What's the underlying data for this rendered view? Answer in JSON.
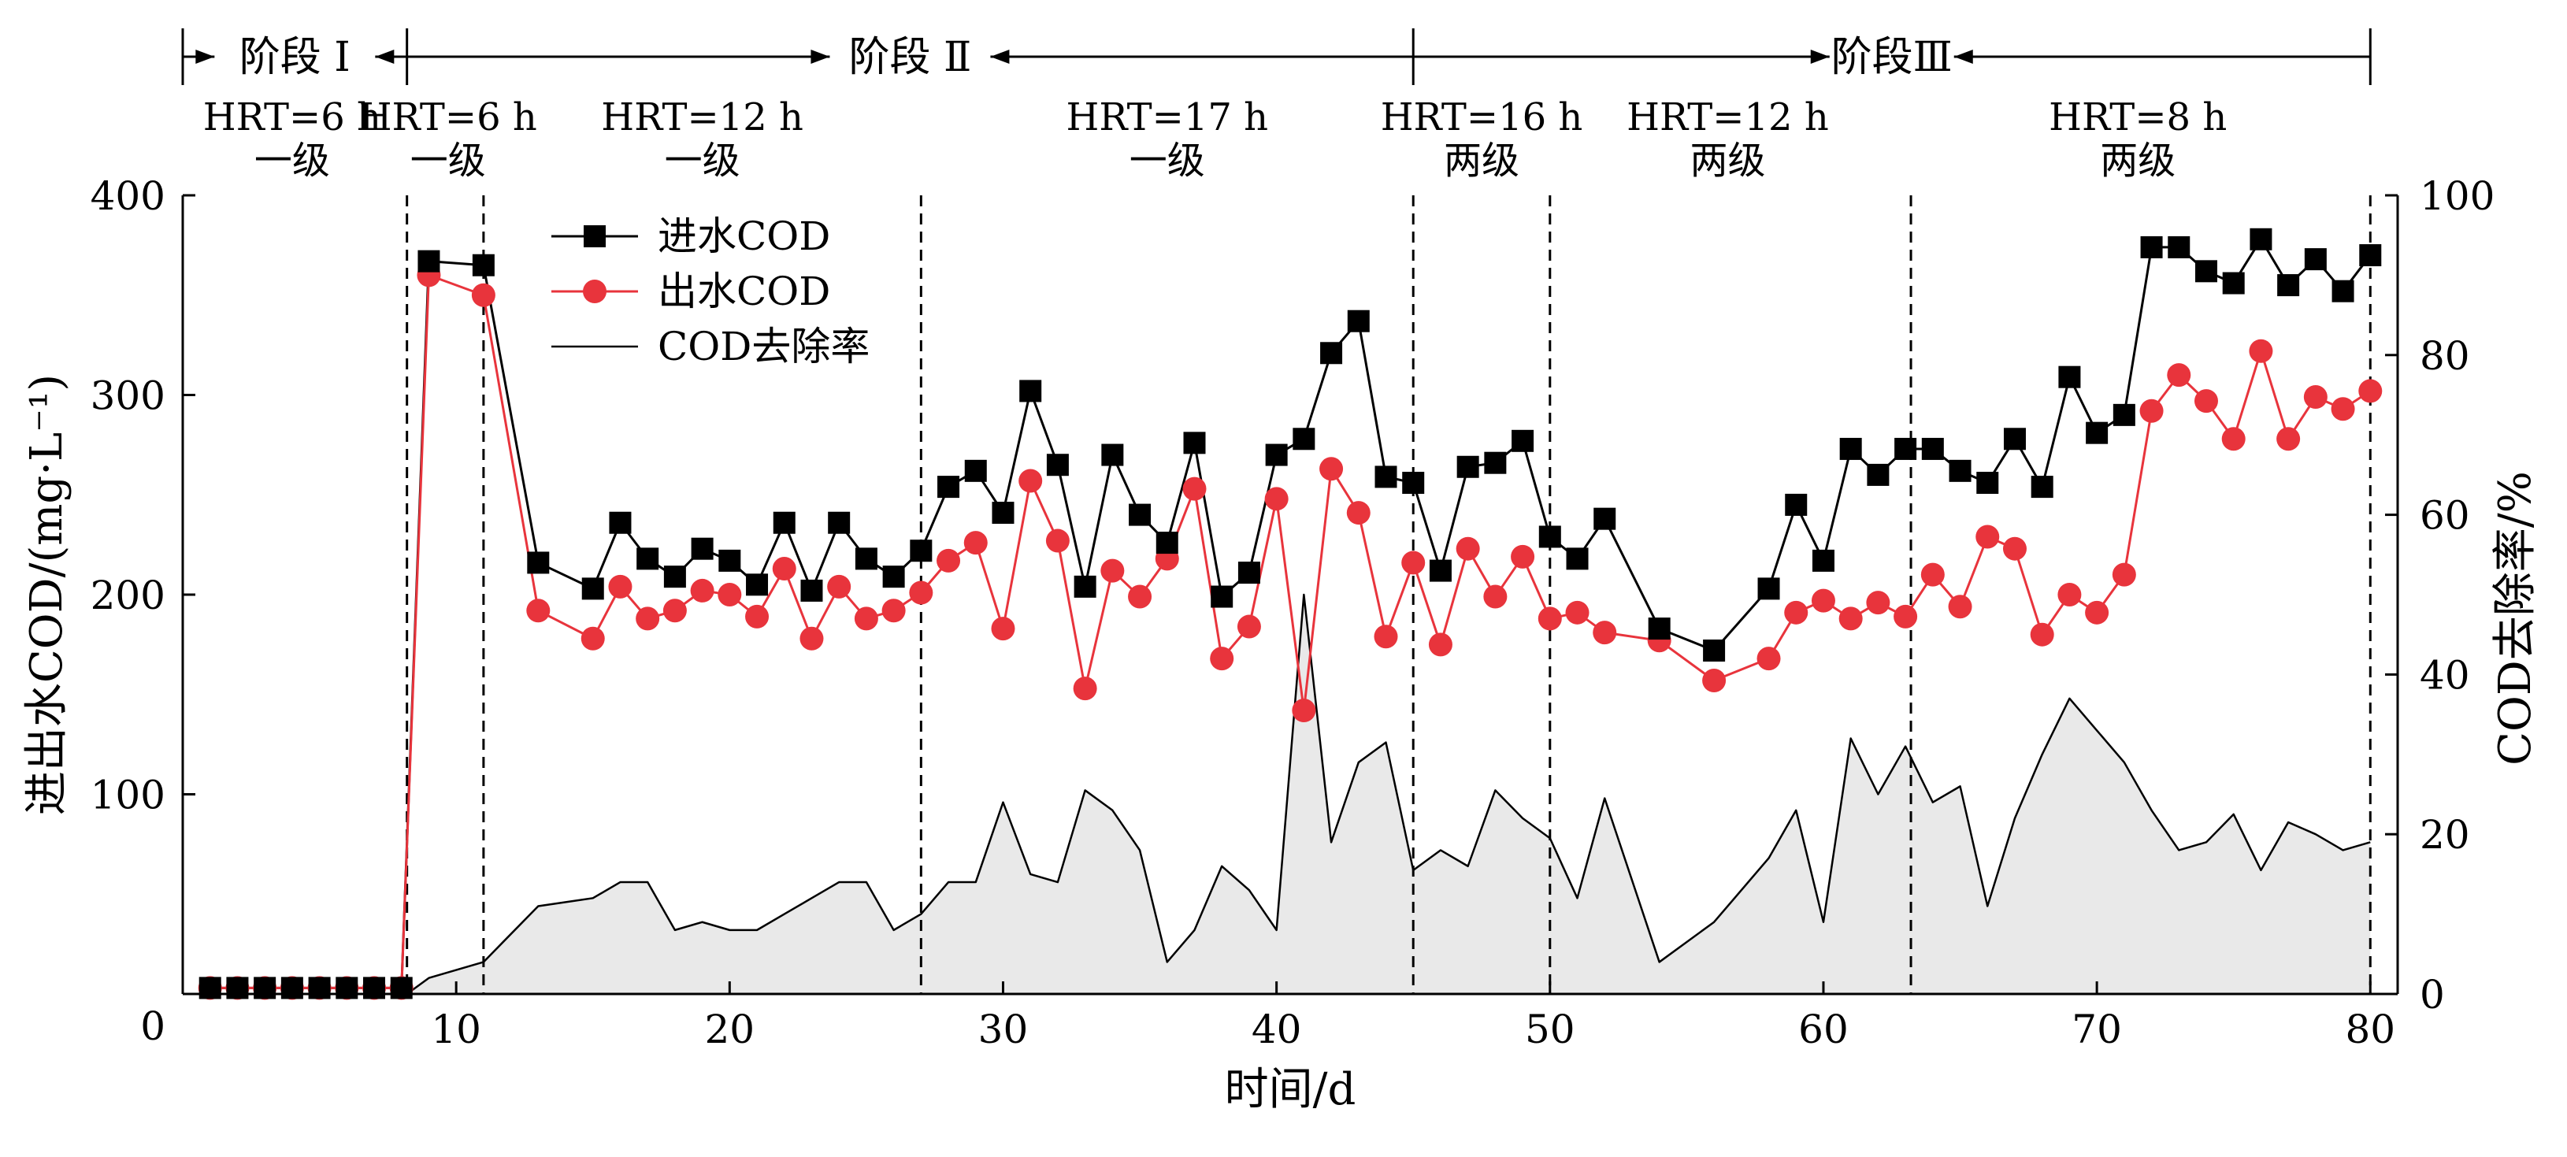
{
  "chart_data": {
    "type": "line",
    "xlabel": "时间/d",
    "ylabel_left": "进出水COD/(mg·L⁻¹)",
    "ylabel_right": "COD去除率/%",
    "xlim": [
      0,
      81
    ],
    "ylim_left": [
      0,
      400
    ],
    "ylim_right": [
      0,
      100
    ],
    "x_ticks": [
      10,
      20,
      30,
      40,
      50,
      60,
      70,
      80
    ],
    "y_left_ticks": [
      100,
      200,
      300,
      400
    ],
    "y_left_origin_label": "0",
    "y_right_ticks": [
      0,
      20,
      40,
      60,
      80,
      100
    ],
    "legend_position": "top-left",
    "legend": [
      "进水COD",
      "出水COD",
      "COD去除率"
    ],
    "colors": {
      "influent": "#000000",
      "effluent": "#e8343c",
      "removal_line": "#000000",
      "removal_fill": "#e9e9e9"
    },
    "phase_separators": [
      8.2,
      11,
      27,
      45,
      50,
      63.2,
      80
    ],
    "stage_markers": [
      {
        "label": "阶段 Ⅰ",
        "x_start": 0,
        "x_end": 8.2
      },
      {
        "label": "阶段 Ⅱ",
        "x_start": 8.2,
        "x_end": 45
      },
      {
        "label": "阶段Ⅲ",
        "x_start": 45,
        "x_end": 80
      }
    ],
    "stage_boundaries": [
      0,
      8.2,
      45,
      80
    ],
    "conditions": [
      {
        "hrt": "HRT=6 h",
        "level": "一级",
        "x": 4
      },
      {
        "hrt": "HRT=6 h",
        "level": "一级",
        "x": 9.7
      },
      {
        "hrt": "HRT=12 h",
        "level": "一级",
        "x": 19
      },
      {
        "hrt": "HRT=17 h",
        "level": "一级",
        "x": 36
      },
      {
        "hrt": "HRT=16 h",
        "level": "两级",
        "x": 47.5
      },
      {
        "hrt": "HRT=12 h",
        "level": "两级",
        "x": 56.5
      },
      {
        "hrt": "HRT=8 h",
        "level": "两级",
        "x": 71.5
      }
    ],
    "series": [
      {
        "name": "进水COD",
        "axis": "left",
        "marker": "square",
        "x": [
          1,
          2,
          3,
          4,
          5,
          6,
          7,
          8,
          9,
          11,
          13,
          15,
          16,
          17,
          18,
          19,
          20,
          21,
          22,
          23,
          24,
          25,
          26,
          27,
          28,
          29,
          30,
          31,
          32,
          33,
          34,
          35,
          36,
          37,
          38,
          39,
          40,
          41,
          42,
          43,
          44,
          45,
          46,
          47,
          48,
          49,
          50,
          51,
          52,
          54,
          56,
          58,
          59,
          60,
          61,
          62,
          63,
          64,
          65,
          66,
          67,
          68,
          69,
          70,
          71,
          72,
          73,
          74,
          75,
          76,
          77,
          78,
          79,
          80
        ],
        "y": [
          3,
          3,
          3,
          3,
          3,
          3,
          3,
          3,
          367,
          365,
          216,
          203,
          236,
          218,
          209,
          223,
          217,
          205,
          236,
          202,
          236,
          218,
          209,
          222,
          254,
          262,
          241,
          302,
          265,
          204,
          270,
          240,
          226,
          276,
          199,
          211,
          270,
          278,
          321,
          337,
          259,
          256,
          212,
          264,
          266,
          277,
          229,
          218,
          238,
          183,
          172,
          203,
          245,
          217,
          273,
          260,
          273,
          273,
          262,
          256,
          278,
          254,
          309,
          281,
          290,
          374,
          374,
          362,
          356,
          378,
          355,
          368,
          352,
          370
        ]
      },
      {
        "name": "出水COD",
        "axis": "left",
        "marker": "circle",
        "x": [
          1,
          2,
          3,
          4,
          5,
          6,
          7,
          8,
          9,
          11,
          13,
          15,
          16,
          17,
          18,
          19,
          20,
          21,
          22,
          23,
          24,
          25,
          26,
          27,
          28,
          29,
          30,
          31,
          32,
          33,
          34,
          35,
          36,
          37,
          38,
          39,
          40,
          41,
          42,
          43,
          44,
          45,
          46,
          47,
          48,
          49,
          50,
          51,
          52,
          54,
          56,
          58,
          59,
          60,
          61,
          62,
          63,
          64,
          65,
          66,
          67,
          68,
          69,
          70,
          71,
          72,
          73,
          74,
          75,
          76,
          77,
          78,
          79,
          80
        ],
        "y": [
          3,
          3,
          3,
          3,
          3,
          3,
          3,
          3,
          360,
          350,
          192,
          178,
          204,
          188,
          192,
          202,
          200,
          189,
          213,
          178,
          204,
          188,
          192,
          201,
          217,
          226,
          183,
          257,
          227,
          153,
          212,
          199,
          218,
          253,
          168,
          184,
          248,
          142,
          263,
          241,
          179,
          216,
          175,
          223,
          199,
          219,
          188,
          191,
          181,
          177,
          157,
          168,
          191,
          197,
          188,
          196,
          189,
          210,
          194,
          229,
          223,
          180,
          200,
          191,
          210,
          292,
          310,
          297,
          278,
          322,
          278,
          299,
          293,
          302
        ]
      },
      {
        "name": "COD去除率",
        "axis": "right",
        "fill": true,
        "x": [
          1,
          2,
          3,
          4,
          5,
          6,
          7,
          8,
          8.2,
          9,
          11,
          13,
          15,
          16,
          17,
          18,
          19,
          20,
          21,
          22,
          23,
          24,
          25,
          26,
          27,
          28,
          29,
          30,
          31,
          32,
          33,
          34,
          35,
          36,
          37,
          38,
          39,
          40,
          41,
          42,
          43,
          44,
          45,
          46,
          47,
          48,
          49,
          50,
          51,
          52,
          54,
          56,
          58,
          59,
          60,
          61,
          62,
          63,
          64,
          65,
          66,
          67,
          68,
          69,
          70,
          71,
          72,
          73,
          74,
          75,
          76,
          77,
          78,
          79,
          80
        ],
        "y": [
          0,
          0,
          0,
          0,
          0,
          0,
          0,
          0,
          0,
          2,
          4,
          11,
          12,
          14,
          14,
          8,
          9,
          8,
          8,
          10,
          12,
          14,
          14,
          8,
          10,
          14,
          14,
          24,
          15,
          14,
          25.5,
          23,
          18,
          4,
          8,
          16,
          13,
          8,
          50,
          19,
          29,
          31.5,
          15.5,
          18,
          16,
          25.5,
          22,
          19.5,
          12,
          24.5,
          4,
          9,
          17,
          23,
          9,
          32,
          25,
          31,
          24,
          26,
          11,
          22,
          30,
          37,
          33,
          29,
          23,
          18,
          19,
          22.5,
          15.5,
          21.5,
          20,
          18,
          19
        ]
      }
    ]
  }
}
